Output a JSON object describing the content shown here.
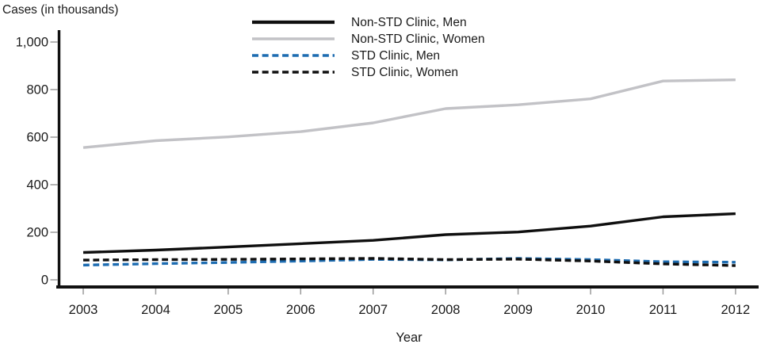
{
  "title": "Cases (in thousands)",
  "x_axis": {
    "label": "Year",
    "ticks": [
      "2003",
      "2004",
      "2005",
      "2006",
      "2007",
      "2008",
      "2009",
      "2010",
      "2011",
      "2012"
    ]
  },
  "y_axis": {
    "ticks": [
      "0",
      "200",
      "400",
      "600",
      "800",
      "1,000"
    ],
    "tick_values": [
      0,
      200,
      400,
      600,
      800,
      1000
    ]
  },
  "colors": {
    "black_line": "#0f0f0f",
    "gray_line": "#c2c2c6",
    "blue_line": "#1d6cb1",
    "axis": "#111111",
    "tick": "#9b9b9b",
    "text": "#1a1a1a"
  },
  "legend": {
    "items": [
      {
        "label": "Non-STD Clinic, Men",
        "color": "#0f0f0f",
        "style": "solid"
      },
      {
        "label": "Non-STD Clinic, Women",
        "color": "#c2c2c6",
        "style": "solid"
      },
      {
        "label": "STD Clinic, Men",
        "color": "#1d6cb1",
        "style": "dashed"
      },
      {
        "label": "STD Clinic, Women",
        "color": "#0f0f0f",
        "style": "dashed"
      }
    ]
  },
  "chart_data": {
    "type": "line",
    "title": "Cases (in thousands)",
    "xlabel": "Year",
    "ylabel": "Cases (in thousands)",
    "x": [
      2003,
      2004,
      2005,
      2006,
      2007,
      2008,
      2009,
      2010,
      2011,
      2012
    ],
    "ylim": [
      0,
      1000
    ],
    "yticks": [
      0,
      200,
      400,
      600,
      800,
      1000
    ],
    "grid": false,
    "legend_position": "top-center",
    "series": [
      {
        "name": "Non-STD Clinic, Men",
        "color": "#0f0f0f",
        "style": "solid",
        "values": [
          115,
          125,
          138,
          152,
          166,
          190,
          201,
          226,
          265,
          278
        ]
      },
      {
        "name": "Non-STD Clinic, Women",
        "color": "#c2c2c6",
        "style": "solid",
        "values": [
          556,
          585,
          601,
          623,
          660,
          720,
          736,
          761,
          836,
          841
        ]
      },
      {
        "name": "STD Clinic, Men",
        "color": "#1d6cb1",
        "style": "dashed",
        "values": [
          62,
          68,
          73,
          79,
          86,
          84,
          90,
          85,
          76,
          74
        ]
      },
      {
        "name": "STD Clinic, Women",
        "color": "#0f0f0f",
        "style": "dashed",
        "values": [
          83,
          85,
          86,
          88,
          90,
          85,
          87,
          79,
          67,
          60
        ]
      }
    ]
  }
}
